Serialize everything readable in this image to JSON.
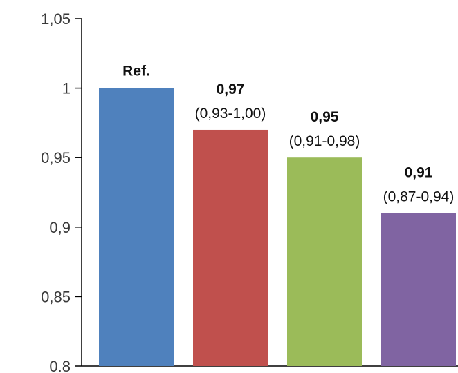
{
  "chart_data": {
    "type": "bar",
    "categories": [
      "",
      "",
      "",
      ""
    ],
    "values": [
      1.0,
      0.97,
      0.95,
      0.91
    ],
    "labels": [
      "Ref.",
      "0,97",
      "0,95",
      "0,91"
    ],
    "ci_labels": [
      "",
      "(0,93-1,00)",
      "(0,91-0,98)",
      "(0,87-0,94)"
    ],
    "colors": [
      "#4F81BD",
      "#C0504D",
      "#9BBB59",
      "#8064A2"
    ],
    "ylim": [
      0.8,
      1.05
    ],
    "yticks": [
      0.8,
      0.85,
      0.9,
      0.95,
      1.0,
      1.05
    ],
    "ytick_labels": [
      "0.8",
      "0,85",
      "0,9",
      "0,95",
      "1",
      "1,05"
    ],
    "title": "",
    "xlabel": "",
    "ylabel": "",
    "grid": false,
    "legend": "none"
  }
}
